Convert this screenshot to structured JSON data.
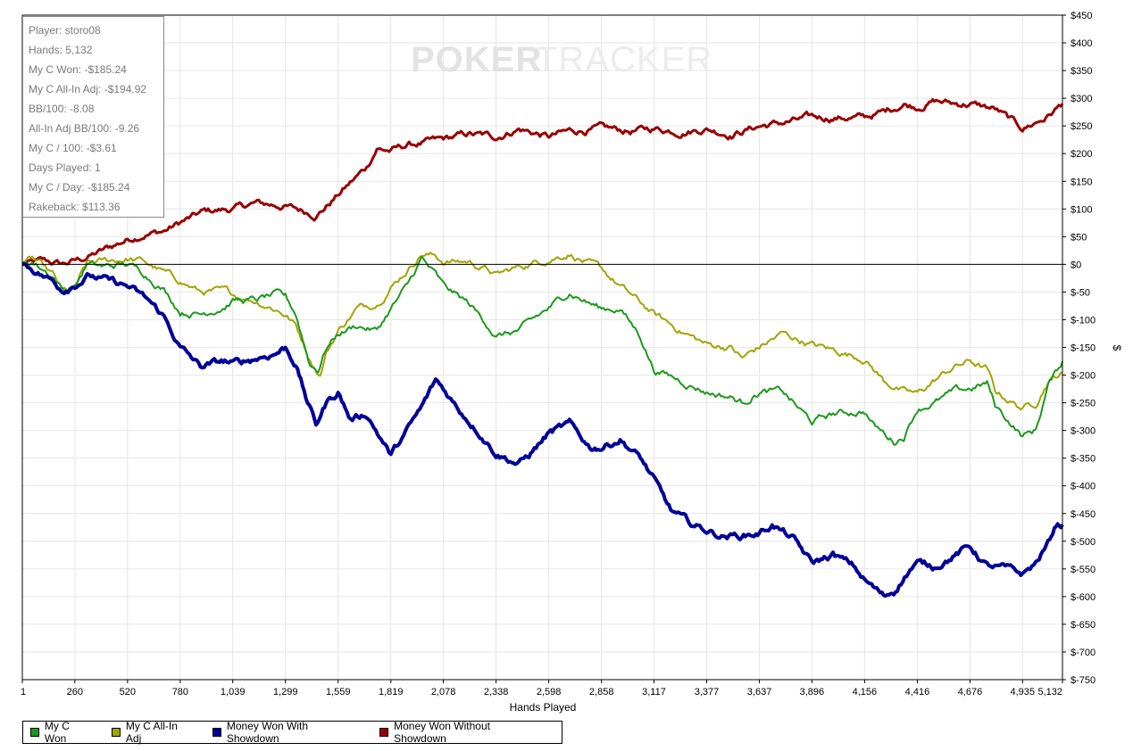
{
  "watermark": {
    "part1": "POKER",
    "part2": "TRACKER"
  },
  "stats": {
    "lines": [
      "Player: storo08",
      "Hands: 5,132",
      "My C Won: -$185.24",
      "My C All-In Adj: -$194.92",
      "BB/100: -8.08",
      "All-In Adj BB/100: -9.26",
      "My C / 100: -$3.61",
      "Days Played: 1",
      "My C / Day: -$185.24",
      "Rakeback: $113.36"
    ]
  },
  "chart_data": {
    "type": "line",
    "xlabel": "Hands Played",
    "ylabel": "$",
    "xlim": [
      1,
      5132
    ],
    "ylim": [
      -750,
      450
    ],
    "x_ticks": [
      1,
      260,
      520,
      780,
      1039,
      1299,
      1559,
      1819,
      2078,
      2338,
      2598,
      2858,
      3117,
      3377,
      3637,
      3896,
      4156,
      4416,
      4676,
      4935,
      5132
    ],
    "x_tick_labels": [
      "1",
      "260",
      "520",
      "780",
      "1,039",
      "1,299",
      "1,559",
      "1,819",
      "2,078",
      "2,338",
      "2,598",
      "2,858",
      "3,117",
      "3,377",
      "3,637",
      "3,896",
      "4,156",
      "4,416",
      "4,676",
      "4,935",
      "5,132"
    ],
    "y_ticks": [
      450,
      400,
      350,
      300,
      250,
      200,
      150,
      100,
      50,
      0,
      -50,
      -100,
      -150,
      -200,
      -250,
      -300,
      -350,
      -400,
      -450,
      -500,
      -550,
      -600,
      -650,
      -700,
      -750
    ],
    "y_tick_labels": [
      "$450",
      "$400",
      "$350",
      "$300",
      "$250",
      "$200",
      "$150",
      "$100",
      "$50",
      "$0",
      "$-50",
      "$-100",
      "$-150",
      "$-200",
      "$-250",
      "$-300",
      "$-350",
      "$-400",
      "$-450",
      "$-500",
      "$-550",
      "$-600",
      "$-650",
      "$-700",
      "$-750"
    ],
    "grid": true,
    "legend_position": "bottom-left",
    "series": [
      {
        "name": "Money Won Without Showdown",
        "color": "#990000",
        "width": 3,
        "points": [
          [
            1,
            0
          ],
          [
            100,
            5
          ],
          [
            200,
            0
          ],
          [
            300,
            10
          ],
          [
            400,
            25
          ],
          [
            520,
            45
          ],
          [
            600,
            55
          ],
          [
            700,
            60
          ],
          [
            780,
            75
          ],
          [
            900,
            95
          ],
          [
            1039,
            100
          ],
          [
            1150,
            110
          ],
          [
            1299,
            105
          ],
          [
            1400,
            95
          ],
          [
            1450,
            90
          ],
          [
            1500,
            105
          ],
          [
            1600,
            140
          ],
          [
            1700,
            175
          ],
          [
            1750,
            210
          ],
          [
            1819,
            205
          ],
          [
            1900,
            215
          ],
          [
            2000,
            220
          ],
          [
            2078,
            225
          ],
          [
            2200,
            235
          ],
          [
            2338,
            230
          ],
          [
            2450,
            245
          ],
          [
            2598,
            230
          ],
          [
            2700,
            240
          ],
          [
            2858,
            245
          ],
          [
            3000,
            240
          ],
          [
            3117,
            245
          ],
          [
            3250,
            240
          ],
          [
            3377,
            245
          ],
          [
            3500,
            235
          ],
          [
            3637,
            250
          ],
          [
            3750,
            255
          ],
          [
            3896,
            265
          ],
          [
            4000,
            265
          ],
          [
            4156,
            265
          ],
          [
            4250,
            275
          ],
          [
            4350,
            290
          ],
          [
            4416,
            285
          ],
          [
            4500,
            295
          ],
          [
            4600,
            290
          ],
          [
            4676,
            290
          ],
          [
            4800,
            280
          ],
          [
            4935,
            245
          ],
          [
            5050,
            265
          ],
          [
            5132,
            290
          ]
        ]
      },
      {
        "name": "My C All-In Adj",
        "color": "#a3a300",
        "width": 2,
        "points": [
          [
            1,
            0
          ],
          [
            50,
            10
          ],
          [
            150,
            -20
          ],
          [
            200,
            -50
          ],
          [
            260,
            -45
          ],
          [
            320,
            0
          ],
          [
            400,
            5
          ],
          [
            520,
            10
          ],
          [
            600,
            5
          ],
          [
            700,
            -15
          ],
          [
            780,
            -30
          ],
          [
            880,
            -50
          ],
          [
            1000,
            -50
          ],
          [
            1039,
            -55
          ],
          [
            1150,
            -65
          ],
          [
            1250,
            -80
          ],
          [
            1299,
            -90
          ],
          [
            1350,
            -110
          ],
          [
            1420,
            -170
          ],
          [
            1470,
            -200
          ],
          [
            1500,
            -160
          ],
          [
            1559,
            -120
          ],
          [
            1650,
            -80
          ],
          [
            1750,
            -70
          ],
          [
            1819,
            -40
          ],
          [
            1900,
            -10
          ],
          [
            1970,
            20
          ],
          [
            2040,
            15
          ],
          [
            2078,
            5
          ],
          [
            2200,
            5
          ],
          [
            2300,
            -10
          ],
          [
            2338,
            -20
          ],
          [
            2450,
            -5
          ],
          [
            2598,
            10
          ],
          [
            2700,
            20
          ],
          [
            2800,
            0
          ],
          [
            2858,
            -10
          ],
          [
            2950,
            -40
          ],
          [
            3117,
            -90
          ],
          [
            3250,
            -120
          ],
          [
            3377,
            -145
          ],
          [
            3500,
            -150
          ],
          [
            3550,
            -170
          ],
          [
            3637,
            -150
          ],
          [
            3750,
            -125
          ],
          [
            3896,
            -145
          ],
          [
            4000,
            -155
          ],
          [
            4156,
            -170
          ],
          [
            4250,
            -210
          ],
          [
            4350,
            -230
          ],
          [
            4416,
            -235
          ],
          [
            4500,
            -210
          ],
          [
            4600,
            -185
          ],
          [
            4676,
            -175
          ],
          [
            4760,
            -190
          ],
          [
            4800,
            -230
          ],
          [
            4935,
            -260
          ],
          [
            5000,
            -250
          ],
          [
            5060,
            -210
          ],
          [
            5132,
            -195
          ]
        ]
      },
      {
        "name": "My C Won",
        "color": "#1a9a1a",
        "width": 2,
        "points": [
          [
            1,
            0
          ],
          [
            50,
            5
          ],
          [
            150,
            -20
          ],
          [
            200,
            -45
          ],
          [
            260,
            -40
          ],
          [
            320,
            0
          ],
          [
            400,
            -5
          ],
          [
            520,
            0
          ],
          [
            600,
            -15
          ],
          [
            700,
            -45
          ],
          [
            780,
            -85
          ],
          [
            880,
            -90
          ],
          [
            1000,
            -75
          ],
          [
            1039,
            -65
          ],
          [
            1150,
            -65
          ],
          [
            1250,
            -55
          ],
          [
            1299,
            -60
          ],
          [
            1350,
            -90
          ],
          [
            1420,
            -180
          ],
          [
            1460,
            -190
          ],
          [
            1500,
            -150
          ],
          [
            1559,
            -125
          ],
          [
            1650,
            -110
          ],
          [
            1750,
            -120
          ],
          [
            1819,
            -80
          ],
          [
            1900,
            -40
          ],
          [
            1970,
            10
          ],
          [
            2040,
            -20
          ],
          [
            2078,
            -40
          ],
          [
            2200,
            -70
          ],
          [
            2300,
            -110
          ],
          [
            2338,
            -130
          ],
          [
            2450,
            -120
          ],
          [
            2598,
            -80
          ],
          [
            2700,
            -50
          ],
          [
            2800,
            -70
          ],
          [
            2858,
            -80
          ],
          [
            2950,
            -80
          ],
          [
            3050,
            -130
          ],
          [
            3117,
            -190
          ],
          [
            3250,
            -210
          ],
          [
            3377,
            -230
          ],
          [
            3500,
            -240
          ],
          [
            3550,
            -250
          ],
          [
            3637,
            -230
          ],
          [
            3750,
            -230
          ],
          [
            3896,
            -285
          ],
          [
            4000,
            -270
          ],
          [
            4156,
            -265
          ],
          [
            4200,
            -290
          ],
          [
            4300,
            -320
          ],
          [
            4350,
            -310
          ],
          [
            4416,
            -260
          ],
          [
            4500,
            -250
          ],
          [
            4600,
            -230
          ],
          [
            4676,
            -225
          ],
          [
            4760,
            -215
          ],
          [
            4800,
            -255
          ],
          [
            4935,
            -310
          ],
          [
            5000,
            -300
          ],
          [
            5060,
            -220
          ],
          [
            5132,
            -175
          ]
        ]
      },
      {
        "name": "Money Won With Showdown",
        "color": "#000099",
        "width": 4,
        "points": [
          [
            1,
            0
          ],
          [
            60,
            -10
          ],
          [
            150,
            -30
          ],
          [
            200,
            -45
          ],
          [
            260,
            -35
          ],
          [
            330,
            -20
          ],
          [
            420,
            -30
          ],
          [
            520,
            -40
          ],
          [
            620,
            -65
          ],
          [
            700,
            -95
          ],
          [
            780,
            -150
          ],
          [
            880,
            -185
          ],
          [
            1000,
            -175
          ],
          [
            1039,
            -180
          ],
          [
            1150,
            -170
          ],
          [
            1250,
            -160
          ],
          [
            1299,
            -150
          ],
          [
            1350,
            -180
          ],
          [
            1400,
            -240
          ],
          [
            1450,
            -290
          ],
          [
            1500,
            -250
          ],
          [
            1559,
            -230
          ],
          [
            1620,
            -280
          ],
          [
            1700,
            -270
          ],
          [
            1780,
            -320
          ],
          [
            1819,
            -345
          ],
          [
            1900,
            -300
          ],
          [
            1970,
            -260
          ],
          [
            2040,
            -210
          ],
          [
            2078,
            -225
          ],
          [
            2150,
            -260
          ],
          [
            2250,
            -300
          ],
          [
            2338,
            -340
          ],
          [
            2450,
            -360
          ],
          [
            2500,
            -345
          ],
          [
            2598,
            -305
          ],
          [
            2700,
            -290
          ],
          [
            2800,
            -330
          ],
          [
            2858,
            -330
          ],
          [
            2950,
            -315
          ],
          [
            3050,
            -350
          ],
          [
            3117,
            -390
          ],
          [
            3200,
            -445
          ],
          [
            3300,
            -470
          ],
          [
            3377,
            -480
          ],
          [
            3450,
            -490
          ],
          [
            3550,
            -490
          ],
          [
            3637,
            -485
          ],
          [
            3700,
            -470
          ],
          [
            3800,
            -495
          ],
          [
            3896,
            -540
          ],
          [
            4000,
            -525
          ],
          [
            4100,
            -545
          ],
          [
            4156,
            -570
          ],
          [
            4250,
            -600
          ],
          [
            4300,
            -590
          ],
          [
            4380,
            -550
          ],
          [
            4416,
            -540
          ],
          [
            4500,
            -545
          ],
          [
            4600,
            -525
          ],
          [
            4676,
            -510
          ],
          [
            4760,
            -545
          ],
          [
            4850,
            -550
          ],
          [
            4935,
            -560
          ],
          [
            5000,
            -540
          ],
          [
            5060,
            -505
          ],
          [
            5100,
            -470
          ],
          [
            5132,
            -470
          ]
        ]
      }
    ]
  },
  "legend": {
    "items": [
      {
        "label": "My C Won",
        "color": "#1a9a1a"
      },
      {
        "label": "My C All-In Adj",
        "color": "#a3a300"
      },
      {
        "label": "Money Won With Showdown",
        "color": "#000099"
      },
      {
        "label": "Money Won Without Showdown",
        "color": "#990000"
      }
    ]
  }
}
